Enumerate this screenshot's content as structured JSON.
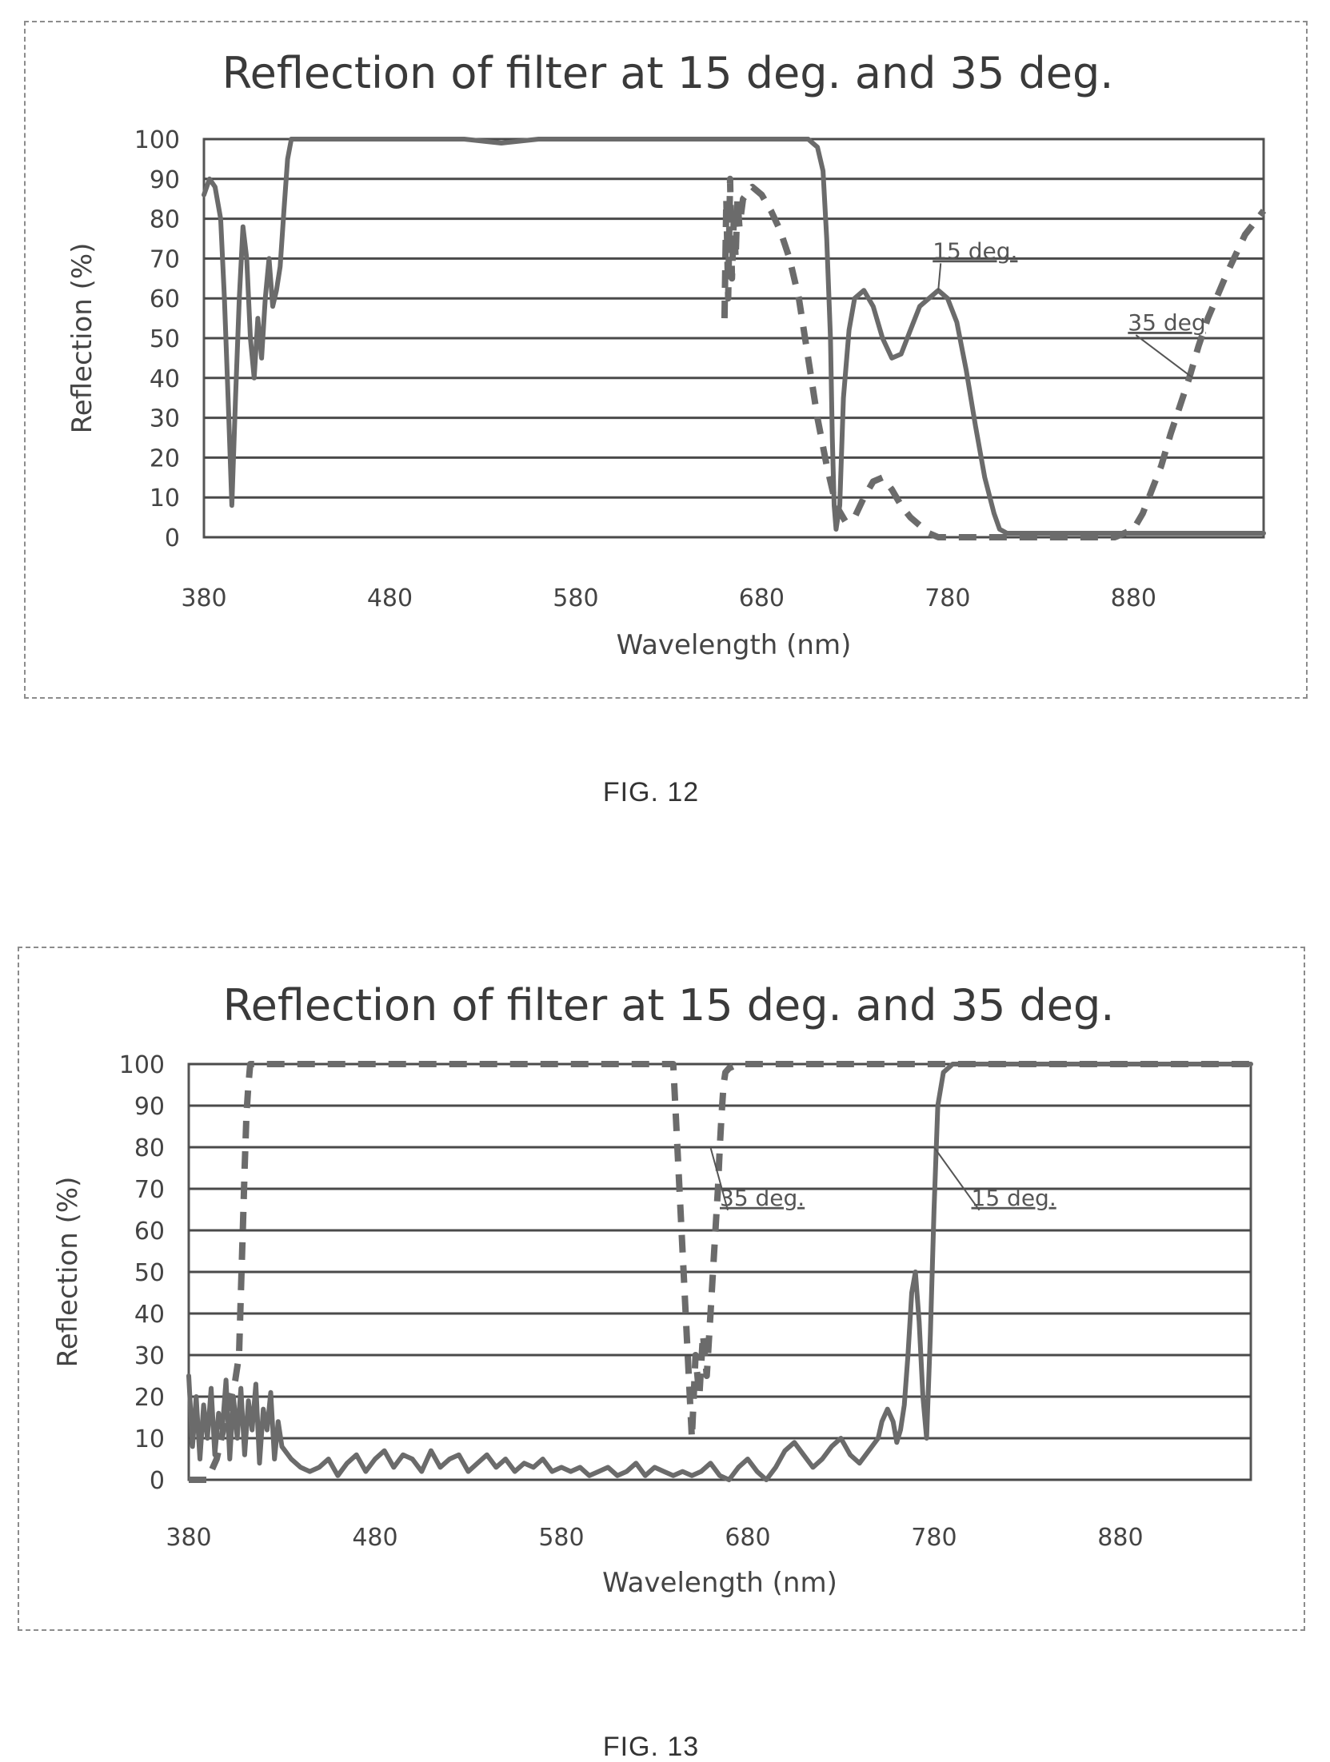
{
  "figures": [
    {
      "caption": "FIG. 12"
    },
    {
      "caption": "FIG. 13"
    }
  ],
  "chart_data": [
    {
      "type": "line",
      "title": "Reflection of filter at 15 deg. and 35 deg.",
      "xlabel": "Wavelength (nm)",
      "ylabel": "Reflection (%)",
      "xlim": [
        380,
        950
      ],
      "ylim": [
        0,
        100
      ],
      "xticks": [
        "380",
        "480",
        "580",
        "680",
        "780",
        "880"
      ],
      "yticks": [
        "0",
        "10",
        "20",
        "30",
        "40",
        "50",
        "60",
        "70",
        "80",
        "90",
        "100"
      ],
      "grid": true,
      "annotations": [
        {
          "text": "15 deg.",
          "series": "15 deg.",
          "at": [
            775,
            62
          ],
          "label_at": [
            772,
            70
          ]
        },
        {
          "text": "35 deg",
          "series": "35 deg",
          "at": [
            912,
            40
          ],
          "label_at": [
            877,
            52
          ]
        }
      ],
      "series": [
        {
          "name": "15 deg.",
          "style": "solid",
          "x": [
            380,
            383,
            386,
            389,
            391,
            393,
            395,
            397,
            399,
            401,
            403,
            405,
            407,
            409,
            411,
            413,
            415,
            417,
            419,
            421,
            423,
            425,
            427,
            430,
            435,
            445,
            460,
            480,
            500,
            520,
            540,
            560,
            580,
            600,
            620,
            640,
            660,
            680,
            695,
            705,
            710,
            713,
            715,
            717,
            718,
            719,
            720,
            722,
            724,
            727,
            730,
            735,
            740,
            745,
            750,
            755,
            760,
            765,
            770,
            775,
            780,
            785,
            790,
            795,
            800,
            805,
            808,
            812,
            820,
            830,
            850,
            870,
            890,
            910,
            930,
            950
          ],
          "y": [
            86,
            90,
            88,
            80,
            60,
            35,
            8,
            35,
            60,
            78,
            70,
            50,
            40,
            55,
            45,
            60,
            70,
            58,
            62,
            68,
            82,
            95,
            100,
            100,
            100,
            100,
            100,
            100,
            100,
            100,
            99,
            100,
            100,
            100,
            100,
            100,
            100,
            100,
            100,
            100,
            98,
            92,
            75,
            50,
            25,
            8,
            2,
            8,
            35,
            52,
            60,
            62,
            58,
            50,
            45,
            46,
            52,
            58,
            60,
            62,
            60,
            54,
            42,
            28,
            15,
            6,
            2,
            1,
            1,
            1,
            1,
            1,
            1,
            1,
            1,
            1
          ]
        },
        {
          "name": "35 deg",
          "style": "dashed",
          "x": [
            660,
            661,
            662,
            663,
            664,
            665,
            666,
            667,
            668,
            670,
            675,
            680,
            685,
            690,
            695,
            700,
            705,
            710,
            715,
            720,
            725,
            730,
            735,
            740,
            745,
            750,
            755,
            760,
            765,
            770,
            775,
            780,
            785,
            790,
            800,
            820,
            850,
            870,
            880,
            885,
            890,
            895,
            900,
            905,
            910,
            915,
            920,
            930,
            940,
            950
          ],
          "y": [
            55,
            85,
            60,
            90,
            65,
            80,
            70,
            85,
            78,
            85,
            88,
            86,
            82,
            77,
            70,
            60,
            45,
            30,
            18,
            8,
            4,
            5,
            10,
            14,
            15,
            12,
            8,
            5,
            3,
            1,
            0,
            0,
            0,
            0,
            0,
            0,
            0,
            0,
            2,
            6,
            12,
            18,
            26,
            33,
            40,
            48,
            55,
            66,
            76,
            82
          ]
        }
      ]
    },
    {
      "type": "line",
      "title": "Reflection of filter at 15 deg. and 35 deg.",
      "xlabel": "Wavelength (nm)",
      "ylabel": "Reflection (%)",
      "xlim": [
        380,
        950
      ],
      "ylim": [
        0,
        100
      ],
      "xticks": [
        "380",
        "480",
        "580",
        "680",
        "780",
        "880"
      ],
      "yticks": [
        "0",
        "10",
        "20",
        "30",
        "40",
        "50",
        "60",
        "70",
        "80",
        "90",
        "100"
      ],
      "grid": true,
      "annotations": [
        {
          "text": "35 deg.",
          "series": "35 deg.",
          "at": [
            660,
            80
          ],
          "label_at": [
            665,
            66
          ]
        },
        {
          "text": "15 deg.",
          "series": "15 deg.",
          "at": [
            780,
            80
          ],
          "label_at": [
            800,
            66
          ]
        }
      ],
      "series": [
        {
          "name": "15 deg.",
          "style": "solid",
          "x": [
            380,
            382,
            384,
            386,
            388,
            390,
            392,
            394,
            396,
            398,
            400,
            402,
            404,
            406,
            408,
            410,
            412,
            414,
            416,
            418,
            420,
            422,
            424,
            426,
            428,
            430,
            435,
            440,
            445,
            450,
            455,
            460,
            465,
            470,
            475,
            480,
            485,
            490,
            495,
            500,
            505,
            510,
            515,
            520,
            525,
            530,
            535,
            540,
            545,
            550,
            555,
            560,
            565,
            570,
            575,
            580,
            585,
            590,
            595,
            600,
            605,
            610,
            615,
            620,
            625,
            630,
            635,
            640,
            645,
            650,
            655,
            660,
            665,
            670,
            675,
            680,
            685,
            690,
            695,
            700,
            705,
            710,
            715,
            720,
            725,
            730,
            735,
            740,
            745,
            750,
            752,
            755,
            758,
            760,
            762,
            764,
            766,
            768,
            770,
            772,
            774,
            776,
            778,
            780,
            782,
            785,
            790,
            800,
            820,
            850,
            880,
            910,
            950
          ],
          "y": [
            25,
            8,
            20,
            5,
            18,
            10,
            22,
            6,
            16,
            12,
            24,
            5,
            20,
            10,
            22,
            6,
            19,
            12,
            23,
            4,
            17,
            12,
            21,
            5,
            14,
            8,
            5,
            3,
            2,
            3,
            5,
            1,
            4,
            6,
            2,
            5,
            7,
            3,
            6,
            5,
            2,
            7,
            3,
            5,
            6,
            2,
            4,
            6,
            3,
            5,
            2,
            4,
            3,
            5,
            2,
            3,
            2,
            3,
            1,
            2,
            3,
            1,
            2,
            4,
            1,
            3,
            2,
            1,
            2,
            1,
            2,
            4,
            1,
            0,
            3,
            5,
            2,
            0,
            3,
            7,
            9,
            6,
            3,
            5,
            8,
            10,
            6,
            4,
            7,
            10,
            14,
            17,
            14,
            9,
            12,
            18,
            30,
            45,
            50,
            38,
            20,
            10,
            35,
            65,
            90,
            98,
            100,
            100,
            100,
            100,
            100,
            100,
            100
          ]
        },
        {
          "name": "35 deg.",
          "style": "dashed",
          "x": [
            380,
            385,
            390,
            395,
            400,
            405,
            407,
            408,
            409,
            410,
            411,
            412,
            413,
            415,
            420,
            425,
            430,
            440,
            450,
            460,
            480,
            500,
            520,
            540,
            560,
            580,
            600,
            620,
            640,
            650,
            652,
            654,
            656,
            658,
            660,
            662,
            664,
            665,
            666,
            667,
            668,
            670,
            675,
            680,
            690,
            700,
            720,
            740,
            760,
            780,
            800,
            850,
            900,
            950
          ],
          "y": [
            0,
            0,
            0,
            5,
            15,
            24,
            30,
            45,
            60,
            75,
            88,
            95,
            100,
            100,
            100,
            100,
            100,
            100,
            100,
            100,
            100,
            100,
            100,
            100,
            100,
            100,
            100,
            100,
            100,
            10,
            30,
            20,
            35,
            25,
            40,
            55,
            70,
            80,
            88,
            95,
            98,
            99,
            100,
            100,
            100,
            100,
            100,
            100,
            100,
            100,
            100,
            100,
            100,
            100
          ]
        }
      ]
    }
  ]
}
